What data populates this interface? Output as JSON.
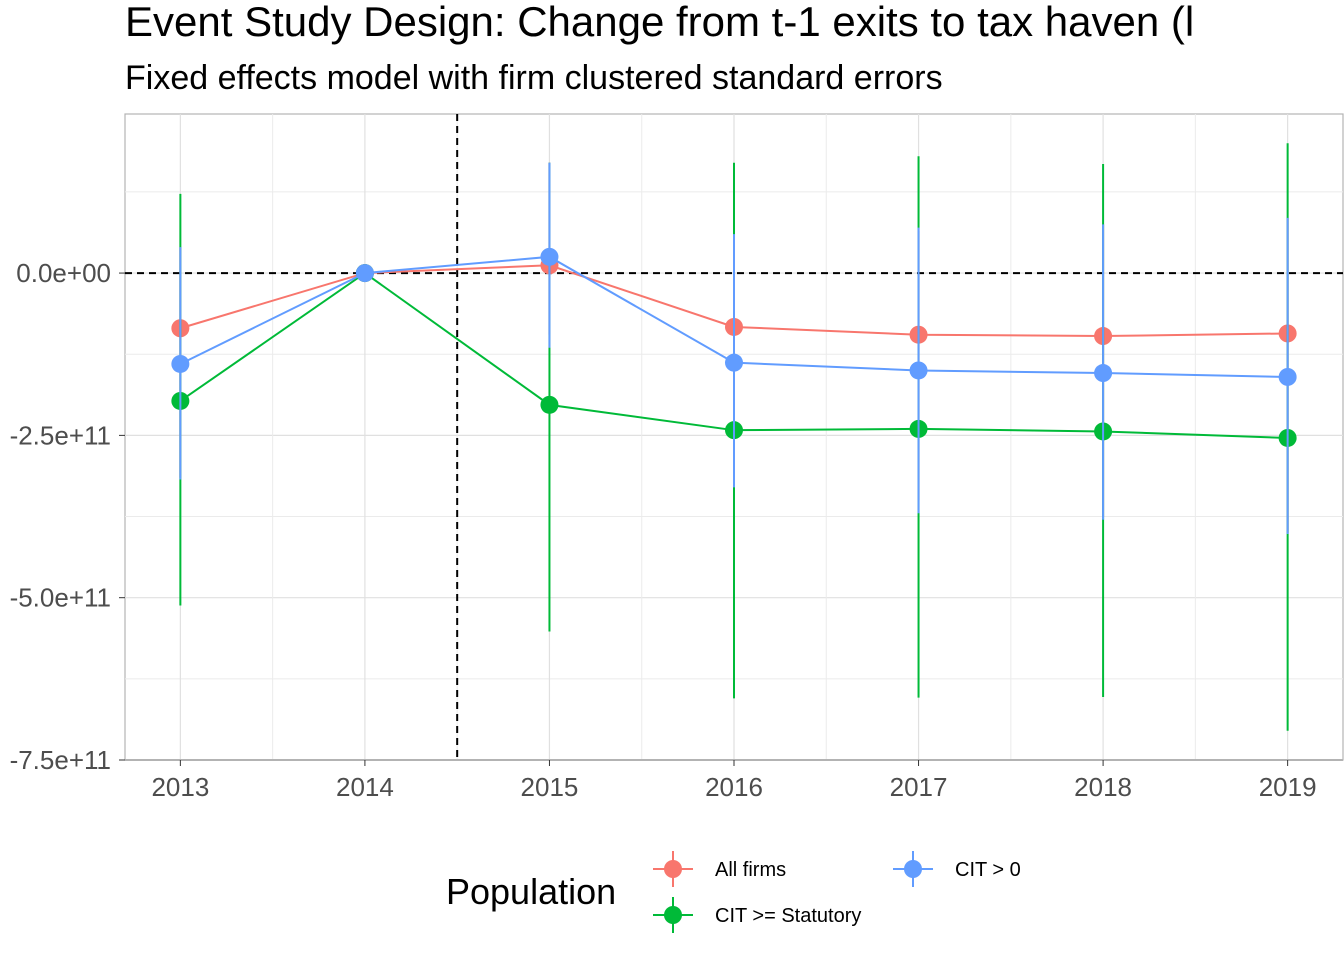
{
  "title": "Event Study Design: Change from t-1 exits to tax haven (l",
  "subtitle": "Fixed effects model with firm clustered standard errors",
  "legend_title": "Population",
  "colors": {
    "All firms": "#F8766D",
    "CIT >= Statutory": "#00BA38",
    "CIT > 0": "#619CFF",
    "grid": "#EBEBEB",
    "panel_border": "#B3B3B3",
    "tick_text": "#4D4D4D"
  },
  "chart_data": {
    "type": "line",
    "x": [
      2013,
      2014,
      2015,
      2016,
      2017,
      2018,
      2019
    ],
    "x_tick_labels": [
      "2013",
      "2014",
      "2015",
      "2016",
      "2017",
      "2018",
      "2019"
    ],
    "y_ticks": [
      0,
      -250000000000,
      -500000000000,
      -750000000000
    ],
    "y_tick_labels": [
      "0.0e+00",
      "-2.5e+11",
      "-5.0e+11",
      "-7.5e+11"
    ],
    "xlim": [
      2012.7,
      2019.3
    ],
    "ylim": [
      -750000000000,
      245000000000
    ],
    "reference_lines": {
      "horizontal_y": 0,
      "vertical_x": 2014.5,
      "style": "dashed"
    },
    "grid": true,
    "legend_position": "bottom",
    "series": [
      {
        "name": "All firms",
        "values": [
          -85000000000,
          0,
          12000000000,
          -83000000000,
          -95000000000,
          -97000000000,
          -93000000000
        ],
        "ci_low": [
          -315000000000,
          0,
          -95000000000,
          -330000000000,
          -350000000000,
          -375000000000,
          -400000000000
        ],
        "ci_high": [
          40000000000,
          0,
          170000000000,
          60000000000,
          65000000000,
          75000000000,
          85000000000
        ]
      },
      {
        "name": "CIT >= Statutory",
        "values": [
          -197000000000,
          0,
          -203000000000,
          -242000000000,
          -240000000000,
          -244000000000,
          -254000000000
        ],
        "ci_low": [
          -512000000000,
          0,
          -552000000000,
          -655000000000,
          -654000000000,
          -653000000000,
          -705000000000
        ],
        "ci_high": [
          122000000000,
          0,
          170000000000,
          170000000000,
          180000000000,
          168000000000,
          200000000000
        ]
      },
      {
        "name": "CIT > 0",
        "values": [
          -140000000000,
          0,
          25000000000,
          -138000000000,
          -150000000000,
          -154000000000,
          -160000000000
        ],
        "ci_low": [
          -318000000000,
          0,
          -115000000000,
          -330000000000,
          -370000000000,
          -380000000000,
          -402000000000
        ],
        "ci_high": [
          40000000000,
          0,
          170000000000,
          60000000000,
          70000000000,
          75000000000,
          85000000000
        ]
      }
    ],
    "legend_order": [
      "All firms",
      "CIT > 0",
      "CIT >= Statutory"
    ]
  }
}
